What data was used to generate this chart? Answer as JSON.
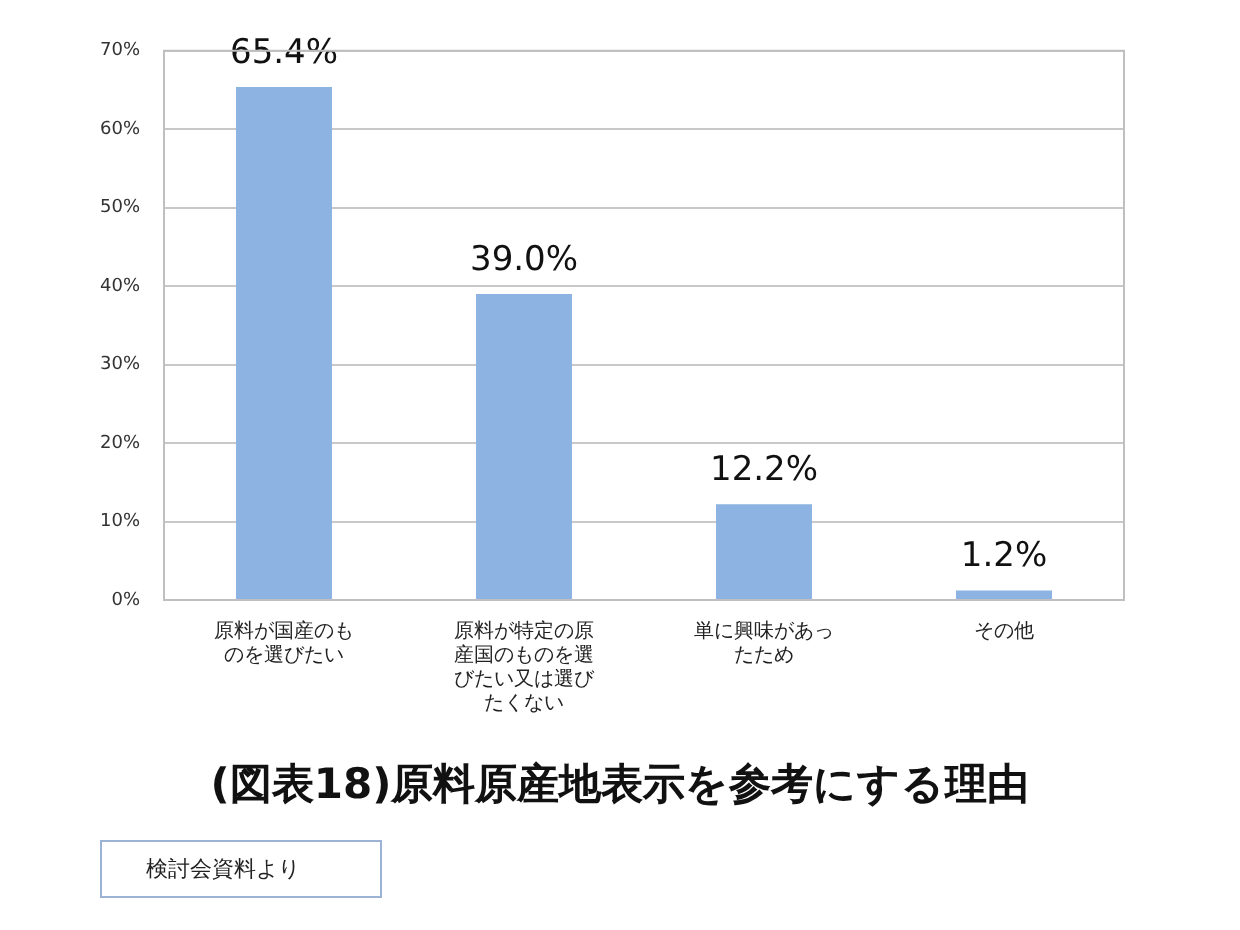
{
  "chart_data": {
    "type": "bar",
    "title": "(図表18)原料原産地表示を参考にする理由",
    "categories": [
      "原料が国産のものを選びたい",
      "原料が特定の原産国のものを選びたい又は選びたくない",
      "単に興味があったため",
      "その他"
    ],
    "values": [
      65.4,
      39.0,
      12.2,
      1.2
    ],
    "value_labels": [
      "65.4%",
      "39.0%",
      "12.2%",
      "1.2%"
    ],
    "color": "#8db3e2",
    "ylim": [
      0,
      70
    ],
    "yticks": [
      {
        "value": 0,
        "label": "0%"
      },
      {
        "value": 10,
        "label": "10%"
      },
      {
        "value": 20,
        "label": "20%"
      },
      {
        "value": 30,
        "label": "30%"
      },
      {
        "value": 40,
        "label": "40%"
      },
      {
        "value": 50,
        "label": "50%"
      },
      {
        "value": 60,
        "label": "60%"
      },
      {
        "value": 70,
        "label": "70%"
      }
    ],
    "grid": "y",
    "legend": false,
    "annotations": [
      "検討会資料より"
    ]
  }
}
